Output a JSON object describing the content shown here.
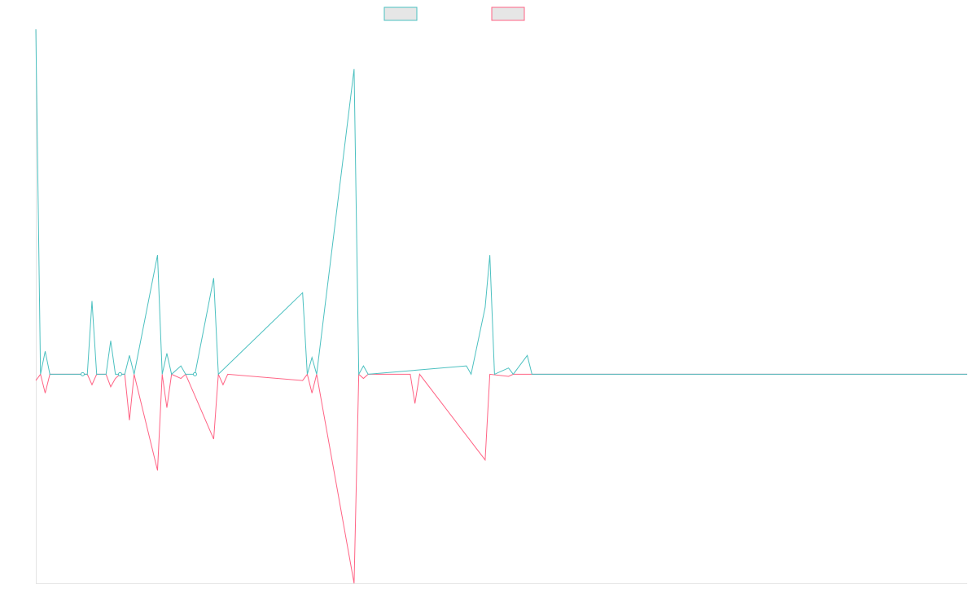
{
  "chart_data": {
    "type": "line",
    "title": "",
    "xlabel": "",
    "ylabel": "",
    "grid": false,
    "legend_position": "top-center",
    "x_count": 200,
    "ylim": [
      -1.0,
      1.65
    ],
    "series": [
      {
        "color": "#4bc0c0",
        "points": [
          [
            0,
            1.65
          ],
          [
            1,
            0
          ],
          [
            2,
            0.11
          ],
          [
            3,
            0
          ],
          [
            10,
            0
          ],
          [
            11,
            0
          ],
          [
            12,
            0.35
          ],
          [
            13,
            0
          ],
          [
            15,
            0
          ],
          [
            16,
            0.16
          ],
          [
            17,
            0
          ],
          [
            18,
            0
          ],
          [
            19,
            0
          ],
          [
            20,
            0.09
          ],
          [
            21,
            0
          ],
          [
            26,
            0.57
          ],
          [
            27,
            0
          ],
          [
            28,
            0.1
          ],
          [
            29,
            0
          ],
          [
            31,
            0.04
          ],
          [
            32,
            0
          ],
          [
            34,
            0
          ],
          [
            38,
            0.46
          ],
          [
            39,
            0
          ],
          [
            57,
            0.39
          ],
          [
            58,
            0
          ],
          [
            59,
            0.08
          ],
          [
            60,
            0
          ],
          [
            68,
            1.46
          ],
          [
            69,
            0
          ],
          [
            70,
            0.04
          ],
          [
            71,
            0
          ],
          [
            92,
            0.04
          ],
          [
            93,
            0
          ],
          [
            96,
            0.32
          ],
          [
            97,
            0.57
          ],
          [
            98,
            0
          ],
          [
            101,
            0.03
          ],
          [
            102,
            0
          ],
          [
            105,
            0.09
          ],
          [
            106,
            0
          ],
          [
            199,
            0
          ]
        ]
      },
      {
        "color": "#ff6384",
        "points": [
          [
            0,
            -0.03
          ],
          [
            1,
            0
          ],
          [
            2,
            -0.09
          ],
          [
            3,
            0
          ],
          [
            11,
            0
          ],
          [
            12,
            -0.05
          ],
          [
            13,
            0
          ],
          [
            15,
            0
          ],
          [
            16,
            -0.06
          ],
          [
            17,
            -0.02
          ],
          [
            18,
            0
          ],
          [
            19,
            0
          ],
          [
            20,
            -0.22
          ],
          [
            21,
            0
          ],
          [
            26,
            -0.46
          ],
          [
            27,
            0
          ],
          [
            28,
            -0.16
          ],
          [
            29,
            0
          ],
          [
            31,
            -0.02
          ],
          [
            32,
            0
          ],
          [
            38,
            -0.31
          ],
          [
            39,
            0
          ],
          [
            40,
            -0.05
          ],
          [
            41,
            0
          ],
          [
            57,
            -0.03
          ],
          [
            58,
            0
          ],
          [
            59,
            -0.09
          ],
          [
            60,
            0
          ],
          [
            68,
            -1.0
          ],
          [
            69,
            0
          ],
          [
            70,
            -0.02
          ],
          [
            71,
            0
          ],
          [
            80,
            0
          ],
          [
            81,
            -0.14
          ],
          [
            82,
            0
          ],
          [
            96,
            -0.41
          ],
          [
            97,
            0
          ],
          [
            101,
            -0.01
          ],
          [
            102,
            0
          ],
          [
            199,
            0
          ]
        ]
      }
    ]
  }
}
